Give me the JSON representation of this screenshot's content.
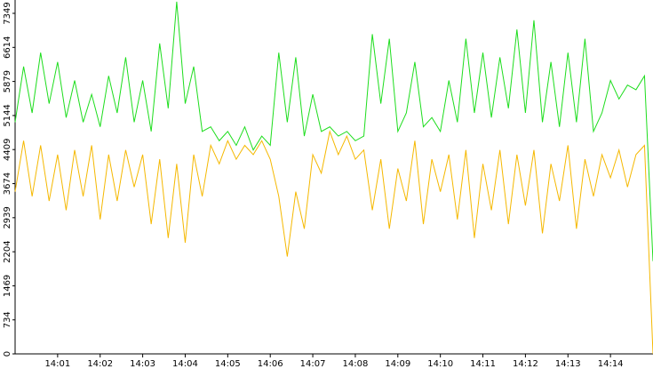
{
  "chart_data": {
    "type": "line",
    "x": [
      840,
      840.2,
      840.4,
      840.6,
      840.8,
      841,
      841.2,
      841.4,
      841.6,
      841.8,
      842,
      842.2,
      842.4,
      842.6,
      842.8,
      843,
      843.2,
      843.4,
      843.6,
      843.8,
      844,
      844.2,
      844.4,
      844.6,
      844.8,
      845,
      845.2,
      845.4,
      845.6,
      845.8,
      846,
      846.2,
      846.4,
      846.6,
      846.8,
      847,
      847.2,
      847.4,
      847.6,
      847.8,
      848,
      848.2,
      848.4,
      848.6,
      848.8,
      849,
      849.2,
      849.4,
      849.6,
      849.8,
      850,
      850.2,
      850.4,
      850.6,
      850.8,
      851,
      851.2,
      851.4,
      851.6,
      851.8,
      852,
      852.2,
      852.4,
      852.6,
      852.8,
      853,
      853.2,
      853.4,
      853.6,
      853.8,
      854,
      854.2,
      854.4,
      854.6,
      854.8,
      855
    ],
    "series": [
      {
        "color": "#1ddd1d",
        "values": [
          5000,
          6200,
          5200,
          6500,
          5400,
          6300,
          5100,
          5900,
          5000,
          5600,
          4900,
          6000,
          5200,
          6400,
          5000,
          5900,
          4800,
          6700,
          5300,
          7600,
          5400,
          6200,
          4800,
          4900,
          4600,
          4800,
          4500,
          4900,
          4400,
          4700,
          4500,
          6500,
          5000,
          6400,
          4700,
          5600,
          4800,
          4900,
          4700,
          4800,
          4600,
          4700,
          6900,
          5400,
          6800,
          4800,
          5200,
          6300,
          4900,
          5100,
          4800,
          5900,
          5000,
          6800,
          5200,
          6500,
          5100,
          6400,
          5300,
          7000,
          5200,
          7200,
          5000,
          6300,
          4900,
          6500,
          5000,
          6800,
          4800,
          5200,
          5900,
          5500,
          5800,
          5700,
          6000,
          2000
        ]
      },
      {
        "color": "#f5b800",
        "values": [
          3500,
          4600,
          3400,
          4500,
          3300,
          4300,
          3100,
          4400,
          3400,
          4500,
          2900,
          4300,
          3300,
          4400,
          3600,
          4300,
          2800,
          4200,
          2500,
          4100,
          2400,
          4300,
          3400,
          4500,
          4100,
          4600,
          4200,
          4500,
          4300,
          4600,
          4200,
          3400,
          2100,
          3500,
          2700,
          4300,
          3900,
          4800,
          4300,
          4700,
          4200,
          4400,
          3100,
          4200,
          2700,
          4000,
          3300,
          4600,
          2800,
          4200,
          3500,
          4300,
          2900,
          4400,
          2500,
          4100,
          3100,
          4400,
          2800,
          4300,
          3200,
          4400,
          2600,
          4100,
          3300,
          4500,
          2700,
          4200,
          3400,
          4300,
          3800,
          4400,
          3600,
          4300,
          4500,
          0
        ]
      }
    ],
    "xlim": [
      840,
      855
    ],
    "xticks": [
      {
        "value": 841,
        "label": "14:01"
      },
      {
        "value": 842,
        "label": "14:02"
      },
      {
        "value": 843,
        "label": "14:03"
      },
      {
        "value": 844,
        "label": "14:04"
      },
      {
        "value": 845,
        "label": "14:05"
      },
      {
        "value": 846,
        "label": "14:06"
      },
      {
        "value": 847,
        "label": "14:07"
      },
      {
        "value": 848,
        "label": "14:08"
      },
      {
        "value": 849,
        "label": "14:09"
      },
      {
        "value": 850,
        "label": "14:10"
      },
      {
        "value": 851,
        "label": "14:11"
      },
      {
        "value": 852,
        "label": "14:12"
      },
      {
        "value": 853,
        "label": "14:13"
      },
      {
        "value": 854,
        "label": "14:14"
      }
    ],
    "ylim": [
      0,
      7349
    ],
    "yticks": [
      0,
      734,
      1469,
      2204,
      2939,
      3674,
      4409,
      5144,
      5879,
      6614,
      7349
    ],
    "grid": false
  }
}
